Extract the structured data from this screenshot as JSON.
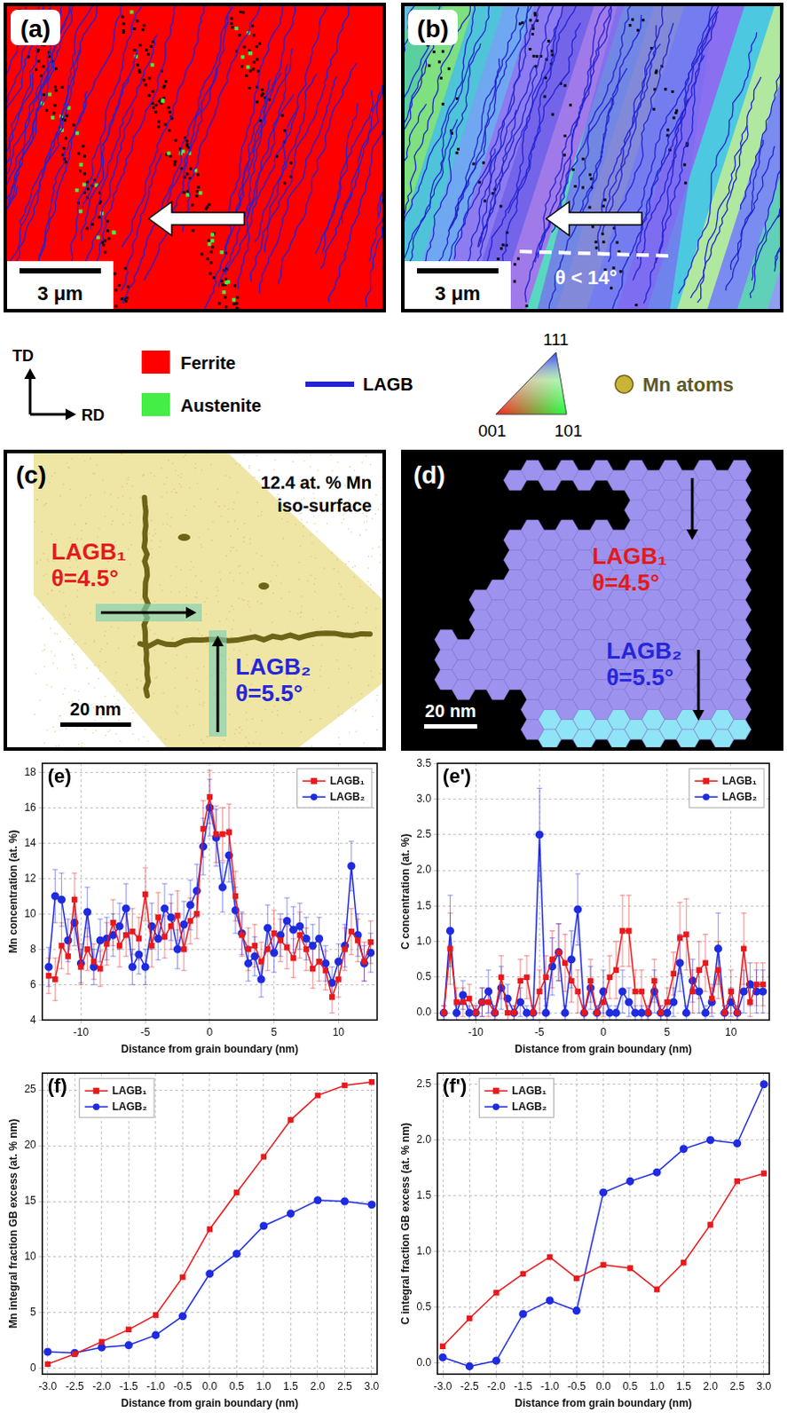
{
  "map_a": {
    "label": "(a)",
    "scale_bar": "3 μm"
  },
  "map_b": {
    "label": "(b)",
    "scale_bar": "3 μm",
    "annotation": "θ < 14°"
  },
  "key": {
    "directions": {
      "vertical": "TD",
      "horizontal": "RD"
    },
    "phases": [
      {
        "name": "Ferrite",
        "color": "#ff0000"
      },
      {
        "name": "Austenite",
        "color": "#44ee44"
      }
    ],
    "boundary": {
      "name": "LAGB",
      "color": "#2323d4"
    },
    "ipf_triangle": {
      "top": "111",
      "left": "001",
      "right": "101"
    },
    "atoms": {
      "name": "Mn atoms",
      "color": "#c9b436",
      "text_color": "#5c5a25"
    }
  },
  "apt_c": {
    "label": "(c)",
    "iso_surface": [
      "12.4 at. % Mn",
      "iso-surface"
    ],
    "boundaries": [
      {
        "name": "LAGB₁",
        "angle": "θ=4.5°",
        "color": "#e31b1b"
      },
      {
        "name": "LAGB₂",
        "angle": "θ=5.5°",
        "color": "#2626d8"
      }
    ],
    "scale_bar": "20 nm"
  },
  "apt_d": {
    "label": "(d)",
    "boundaries": [
      {
        "name": "LAGB₁",
        "angle": "θ=4.5°",
        "color": "#e31b1b"
      },
      {
        "name": "LAGB₂",
        "angle": "θ=5.5°",
        "color": "#2626d8"
      }
    ],
    "scale_bar": "20 nm"
  },
  "chart_data": [
    {
      "type": "line",
      "title": "(e)",
      "x_label": "Distance from grain boundary (nm)",
      "y_label": "Mn concentration (at. %)",
      "x": [
        -12.5,
        -12,
        -11.5,
        -11,
        -10.5,
        -10,
        -9.5,
        -9,
        -8.5,
        -8,
        -7.5,
        -7,
        -6.5,
        -6,
        -5.5,
        -5,
        -4.5,
        -4,
        -3.5,
        -3,
        -2.5,
        -2,
        -1.5,
        -1,
        -0.5,
        0,
        0.5,
        1,
        1.5,
        2,
        2.5,
        3,
        3.5,
        4,
        4.5,
        5,
        5.5,
        6,
        6.5,
        7,
        7.5,
        8,
        8.5,
        9,
        9.5,
        10,
        10.5,
        11,
        11.5,
        12,
        12.5
      ],
      "xlim": [
        -13,
        13
      ],
      "xticks": [
        -10,
        -5,
        0,
        5,
        10
      ],
      "ylim": [
        4,
        18.5
      ],
      "yticks": [
        4,
        6,
        8,
        10,
        12,
        14,
        16,
        18
      ],
      "grid": true,
      "legend": "top right",
      "series": [
        {
          "name": "LAGB₁",
          "color": "#e8191c",
          "marker": "square",
          "values": [
            6.5,
            6.3,
            8.2,
            7.6,
            10.8,
            7.0,
            8.0,
            7.3,
            6.9,
            8.3,
            9.5,
            8.2,
            8.8,
            9.0,
            8.6,
            11.1,
            8.2,
            9.8,
            8.7,
            9.3,
            9.9,
            8.0,
            9.6,
            10.0,
            14.8,
            16.6,
            14.5,
            14.5,
            14.6,
            11.0,
            8.8,
            8.0,
            8.2,
            7.3,
            8.0,
            8.9,
            8.5,
            8.1,
            7.5,
            8.8,
            8.0,
            6.9,
            7.3,
            6.8,
            5.3,
            6.3,
            8.0,
            9.0,
            8.5,
            7.3,
            8.4
          ],
          "errors": [
            1.0,
            1.2,
            1.3,
            1.0,
            1.5,
            1.0,
            1.2,
            1.0,
            1.0,
            1.2,
            1.3,
            1.2,
            1.2,
            1.3,
            1.2,
            1.5,
            1.2,
            1.4,
            1.2,
            1.3,
            1.4,
            1.2,
            1.3,
            1.4,
            1.6,
            1.5,
            1.6,
            1.5,
            1.6,
            1.4,
            1.2,
            1.2,
            1.2,
            1.1,
            1.2,
            1.3,
            1.2,
            1.2,
            1.1,
            1.3,
            1.2,
            1.1,
            1.1,
            1.1,
            0.9,
            1.0,
            1.2,
            1.3,
            1.2,
            1.1,
            1.2
          ]
        },
        {
          "name": "LAGB₂",
          "color": "#1f2be0",
          "marker": "circle",
          "values": [
            7.0,
            11.0,
            10.8,
            8.5,
            9.5,
            7.2,
            10.1,
            7.0,
            8.5,
            8.6,
            8.8,
            9.3,
            10.3,
            7.0,
            7.7,
            7.0,
            9.3,
            8.6,
            10.3,
            9.8,
            8.0,
            9.4,
            10.5,
            11.3,
            13.8,
            16.0,
            14.3,
            11.5,
            13.3,
            10.2,
            8.9,
            7.2,
            7.6,
            6.3,
            9.2,
            7.8,
            8.8,
            9.6,
            9.1,
            9.3,
            8.6,
            8.2,
            8.6,
            7.2,
            6.1,
            7.3,
            8.2,
            12.7,
            8.8,
            7.2,
            7.8
          ],
          "errors": [
            1.1,
            1.5,
            1.5,
            1.2,
            1.3,
            1.1,
            1.4,
            1.0,
            1.2,
            1.2,
            1.2,
            1.3,
            1.4,
            1.0,
            1.1,
            1.0,
            1.3,
            1.2,
            1.4,
            1.3,
            1.1,
            1.3,
            1.4,
            1.5,
            1.6,
            1.6,
            1.6,
            1.4,
            1.5,
            1.3,
            1.2,
            1.0,
            1.1,
            1.0,
            1.3,
            1.1,
            1.2,
            1.3,
            1.3,
            1.3,
            1.2,
            1.2,
            1.2,
            1.0,
            0.9,
            1.0,
            1.2,
            1.4,
            1.2,
            1.0,
            1.1
          ]
        }
      ]
    },
    {
      "type": "line",
      "title": "(e')",
      "x_label": "Distance from grain boundary (nm)",
      "y_label": "C concentration (at. %)",
      "x": [
        -12.5,
        -12,
        -11.5,
        -11,
        -10.5,
        -10,
        -9.5,
        -9,
        -8.5,
        -8,
        -7.5,
        -7,
        -6.5,
        -6,
        -5.5,
        -5,
        -4.5,
        -4,
        -3.5,
        -3,
        -2.5,
        -2,
        -1.5,
        -1,
        -0.5,
        0,
        0.5,
        1,
        1.5,
        2,
        2.5,
        3,
        3.5,
        4,
        4.5,
        5,
        5.5,
        6,
        6.5,
        7,
        7.5,
        8,
        8.5,
        9,
        9.5,
        10,
        10.5,
        11,
        11.5,
        12,
        12.5
      ],
      "xlim": [
        -13,
        13
      ],
      "xticks": [
        -10,
        -5,
        0,
        5,
        10
      ],
      "ylim": [
        -0.1,
        3.5
      ],
      "yticks": [
        {
          "value": 0,
          "label": "0.0"
        },
        0.5,
        {
          "value": 1,
          "label": "1.0"
        },
        1.5,
        {
          "value": 2,
          "label": "2.0"
        },
        2.5,
        {
          "value": 3,
          "label": "3.0"
        },
        3.5
      ],
      "grid": true,
      "legend": "top right",
      "series": [
        {
          "name": "LAGB₁",
          "color": "#e8191c",
          "marker": "square",
          "values": [
            0.0,
            0.9,
            0.15,
            0.15,
            0.2,
            0.0,
            0.15,
            0.15,
            0.0,
            0.5,
            0.0,
            0.0,
            0.45,
            0.5,
            0.0,
            0.3,
            0.5,
            0.75,
            0.85,
            0.7,
            0.45,
            0.3,
            0.0,
            0.45,
            0.0,
            0.15,
            0.5,
            0.6,
            1.15,
            1.15,
            0.3,
            0.3,
            0.0,
            0.45,
            0.0,
            0.15,
            0.55,
            1.05,
            1.1,
            0.3,
            0.6,
            0.7,
            0.2,
            0.6,
            0.0,
            0.3,
            0.0,
            0.9,
            0.15,
            0.4,
            0.4
          ],
          "errors": [
            0.1,
            0.5,
            0.2,
            0.2,
            0.2,
            0.1,
            0.2,
            0.2,
            0.1,
            0.3,
            0.1,
            0.1,
            0.3,
            0.3,
            0.1,
            0.3,
            0.3,
            0.4,
            0.4,
            0.4,
            0.3,
            0.3,
            0.1,
            0.3,
            0.1,
            0.2,
            0.3,
            0.4,
            0.5,
            0.5,
            0.3,
            0.3,
            0.1,
            0.3,
            0.1,
            0.2,
            0.3,
            0.5,
            0.5,
            0.3,
            0.4,
            0.4,
            0.2,
            0.4,
            0.1,
            0.3,
            0.1,
            0.5,
            0.2,
            0.3,
            0.3
          ]
        },
        {
          "name": "LAGB₂",
          "color": "#1f2be0",
          "marker": "circle",
          "values": [
            0.0,
            1.15,
            0.0,
            0.25,
            0.0,
            0.0,
            0.15,
            0.3,
            0.0,
            0.35,
            0.2,
            0.0,
            0.15,
            0.0,
            0.0,
            2.5,
            0.0,
            0.65,
            0.85,
            0.0,
            0.75,
            1.45,
            0.0,
            0.35,
            0.0,
            0.3,
            0.0,
            0.0,
            0.3,
            0.15,
            0.0,
            0.0,
            0.0,
            0.3,
            0.0,
            0.0,
            0.15,
            0.7,
            0.0,
            0.45,
            0.3,
            0.0,
            0.15,
            0.9,
            0.0,
            0.15,
            0.0,
            0.3,
            0.4,
            0.3,
            0.3
          ],
          "errors": [
            0.1,
            0.5,
            0.1,
            0.2,
            0.1,
            0.1,
            0.2,
            0.3,
            0.1,
            0.3,
            0.2,
            0.1,
            0.2,
            0.1,
            0.1,
            0.65,
            0.1,
            0.4,
            0.4,
            0.1,
            0.4,
            0.5,
            0.1,
            0.3,
            0.1,
            0.3,
            0.1,
            0.1,
            0.3,
            0.2,
            0.1,
            0.1,
            0.1,
            0.3,
            0.1,
            0.1,
            0.2,
            0.4,
            0.1,
            0.3,
            0.3,
            0.1,
            0.2,
            0.5,
            0.1,
            0.2,
            0.1,
            0.3,
            0.3,
            0.3,
            0.3
          ]
        }
      ]
    },
    {
      "type": "line",
      "title": "(f)",
      "x_label": "Distance from grain boundary (nm)",
      "y_label": "Mn integral fraction GB excess (at. % nm)",
      "x": [
        -3,
        -2.5,
        -2,
        -1.5,
        -1,
        -0.5,
        0,
        0.5,
        1,
        1.5,
        2,
        2.5,
        3
      ],
      "xlim": [
        -3.1,
        3.1
      ],
      "xticks": [
        {
          "value": -3,
          "label": "-3.0"
        },
        -2.5,
        {
          "value": -2,
          "label": "-2.0"
        },
        -1.5,
        {
          "value": -1,
          "label": "-1.0"
        },
        -0.5,
        {
          "value": 0,
          "label": "0.0"
        },
        0.5,
        {
          "value": 1,
          "label": "1.0"
        },
        1.5,
        {
          "value": 2,
          "label": "2.0"
        },
        2.5,
        {
          "value": 3,
          "label": "3.0"
        }
      ],
      "ylim": [
        -0.5,
        26.5
      ],
      "yticks": [
        0,
        5,
        10,
        15,
        20,
        25
      ],
      "grid": true,
      "legend": "top left",
      "series": [
        {
          "name": "LAGB₁",
          "color": "#e8191c",
          "marker": "square",
          "values": [
            0.4,
            1.3,
            2.4,
            3.5,
            4.8,
            8.2,
            12.5,
            15.8,
            19.0,
            22.3,
            24.5,
            25.4,
            25.7
          ]
        },
        {
          "name": "LAGB₂",
          "color": "#1f2be0",
          "marker": "circle",
          "values": [
            1.5,
            1.4,
            1.9,
            2.1,
            3.0,
            4.7,
            8.5,
            10.3,
            12.8,
            13.9,
            15.1,
            15.0,
            14.7
          ]
        }
      ]
    },
    {
      "type": "line",
      "title": "(f')",
      "x_label": "Distance from grain boundary (nm)",
      "y_label": "C integral fraction GB excess (at. % nm)",
      "x": [
        -3,
        -2.5,
        -2,
        -1.5,
        -1,
        -0.5,
        0,
        0.5,
        1,
        1.5,
        2,
        2.5,
        3
      ],
      "xlim": [
        -3.1,
        3.1
      ],
      "xticks": [
        {
          "value": -3,
          "label": "-3.0"
        },
        -2.5,
        {
          "value": -2,
          "label": "-2.0"
        },
        -1.5,
        {
          "value": -1,
          "label": "-1.0"
        },
        -0.5,
        {
          "value": 0,
          "label": "0.0"
        },
        0.5,
        {
          "value": 1,
          "label": "1.0"
        },
        1.5,
        {
          "value": 2,
          "label": "2.0"
        },
        2.5,
        {
          "value": 3,
          "label": "3.0"
        }
      ],
      "ylim": [
        -0.1,
        2.6
      ],
      "yticks": [
        {
          "value": 0,
          "label": "0.0"
        },
        0.5,
        {
          "value": 1,
          "label": "1.0"
        },
        1.5,
        {
          "value": 2,
          "label": "2.0"
        },
        2.5
      ],
      "grid": true,
      "legend": "top left",
      "series": [
        {
          "name": "LAGB₁",
          "color": "#e8191c",
          "marker": "square",
          "values": [
            0.15,
            0.4,
            0.63,
            0.8,
            0.95,
            0.76,
            0.88,
            0.85,
            0.66,
            0.9,
            1.24,
            1.63,
            1.7
          ]
        },
        {
          "name": "LAGB₂",
          "color": "#1f2be0",
          "marker": "circle",
          "values": [
            0.05,
            -0.03,
            0.02,
            0.44,
            0.56,
            0.47,
            1.53,
            1.63,
            1.71,
            1.92,
            2.0,
            1.97,
            2.5
          ]
        }
      ]
    }
  ]
}
